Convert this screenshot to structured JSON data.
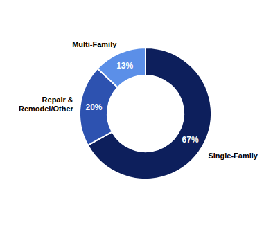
{
  "chart_data": {
    "type": "donut",
    "categories": [
      "Single-Family",
      "Repair &\nRemodel/Other",
      "Multi-Family"
    ],
    "values": [
      67,
      20,
      13
    ],
    "value_labels": [
      "67%",
      "20%",
      "13%"
    ],
    "colors": [
      "#0d1f5c",
      "#2d52b0",
      "#5b8fe8"
    ],
    "data_labels": true
  }
}
